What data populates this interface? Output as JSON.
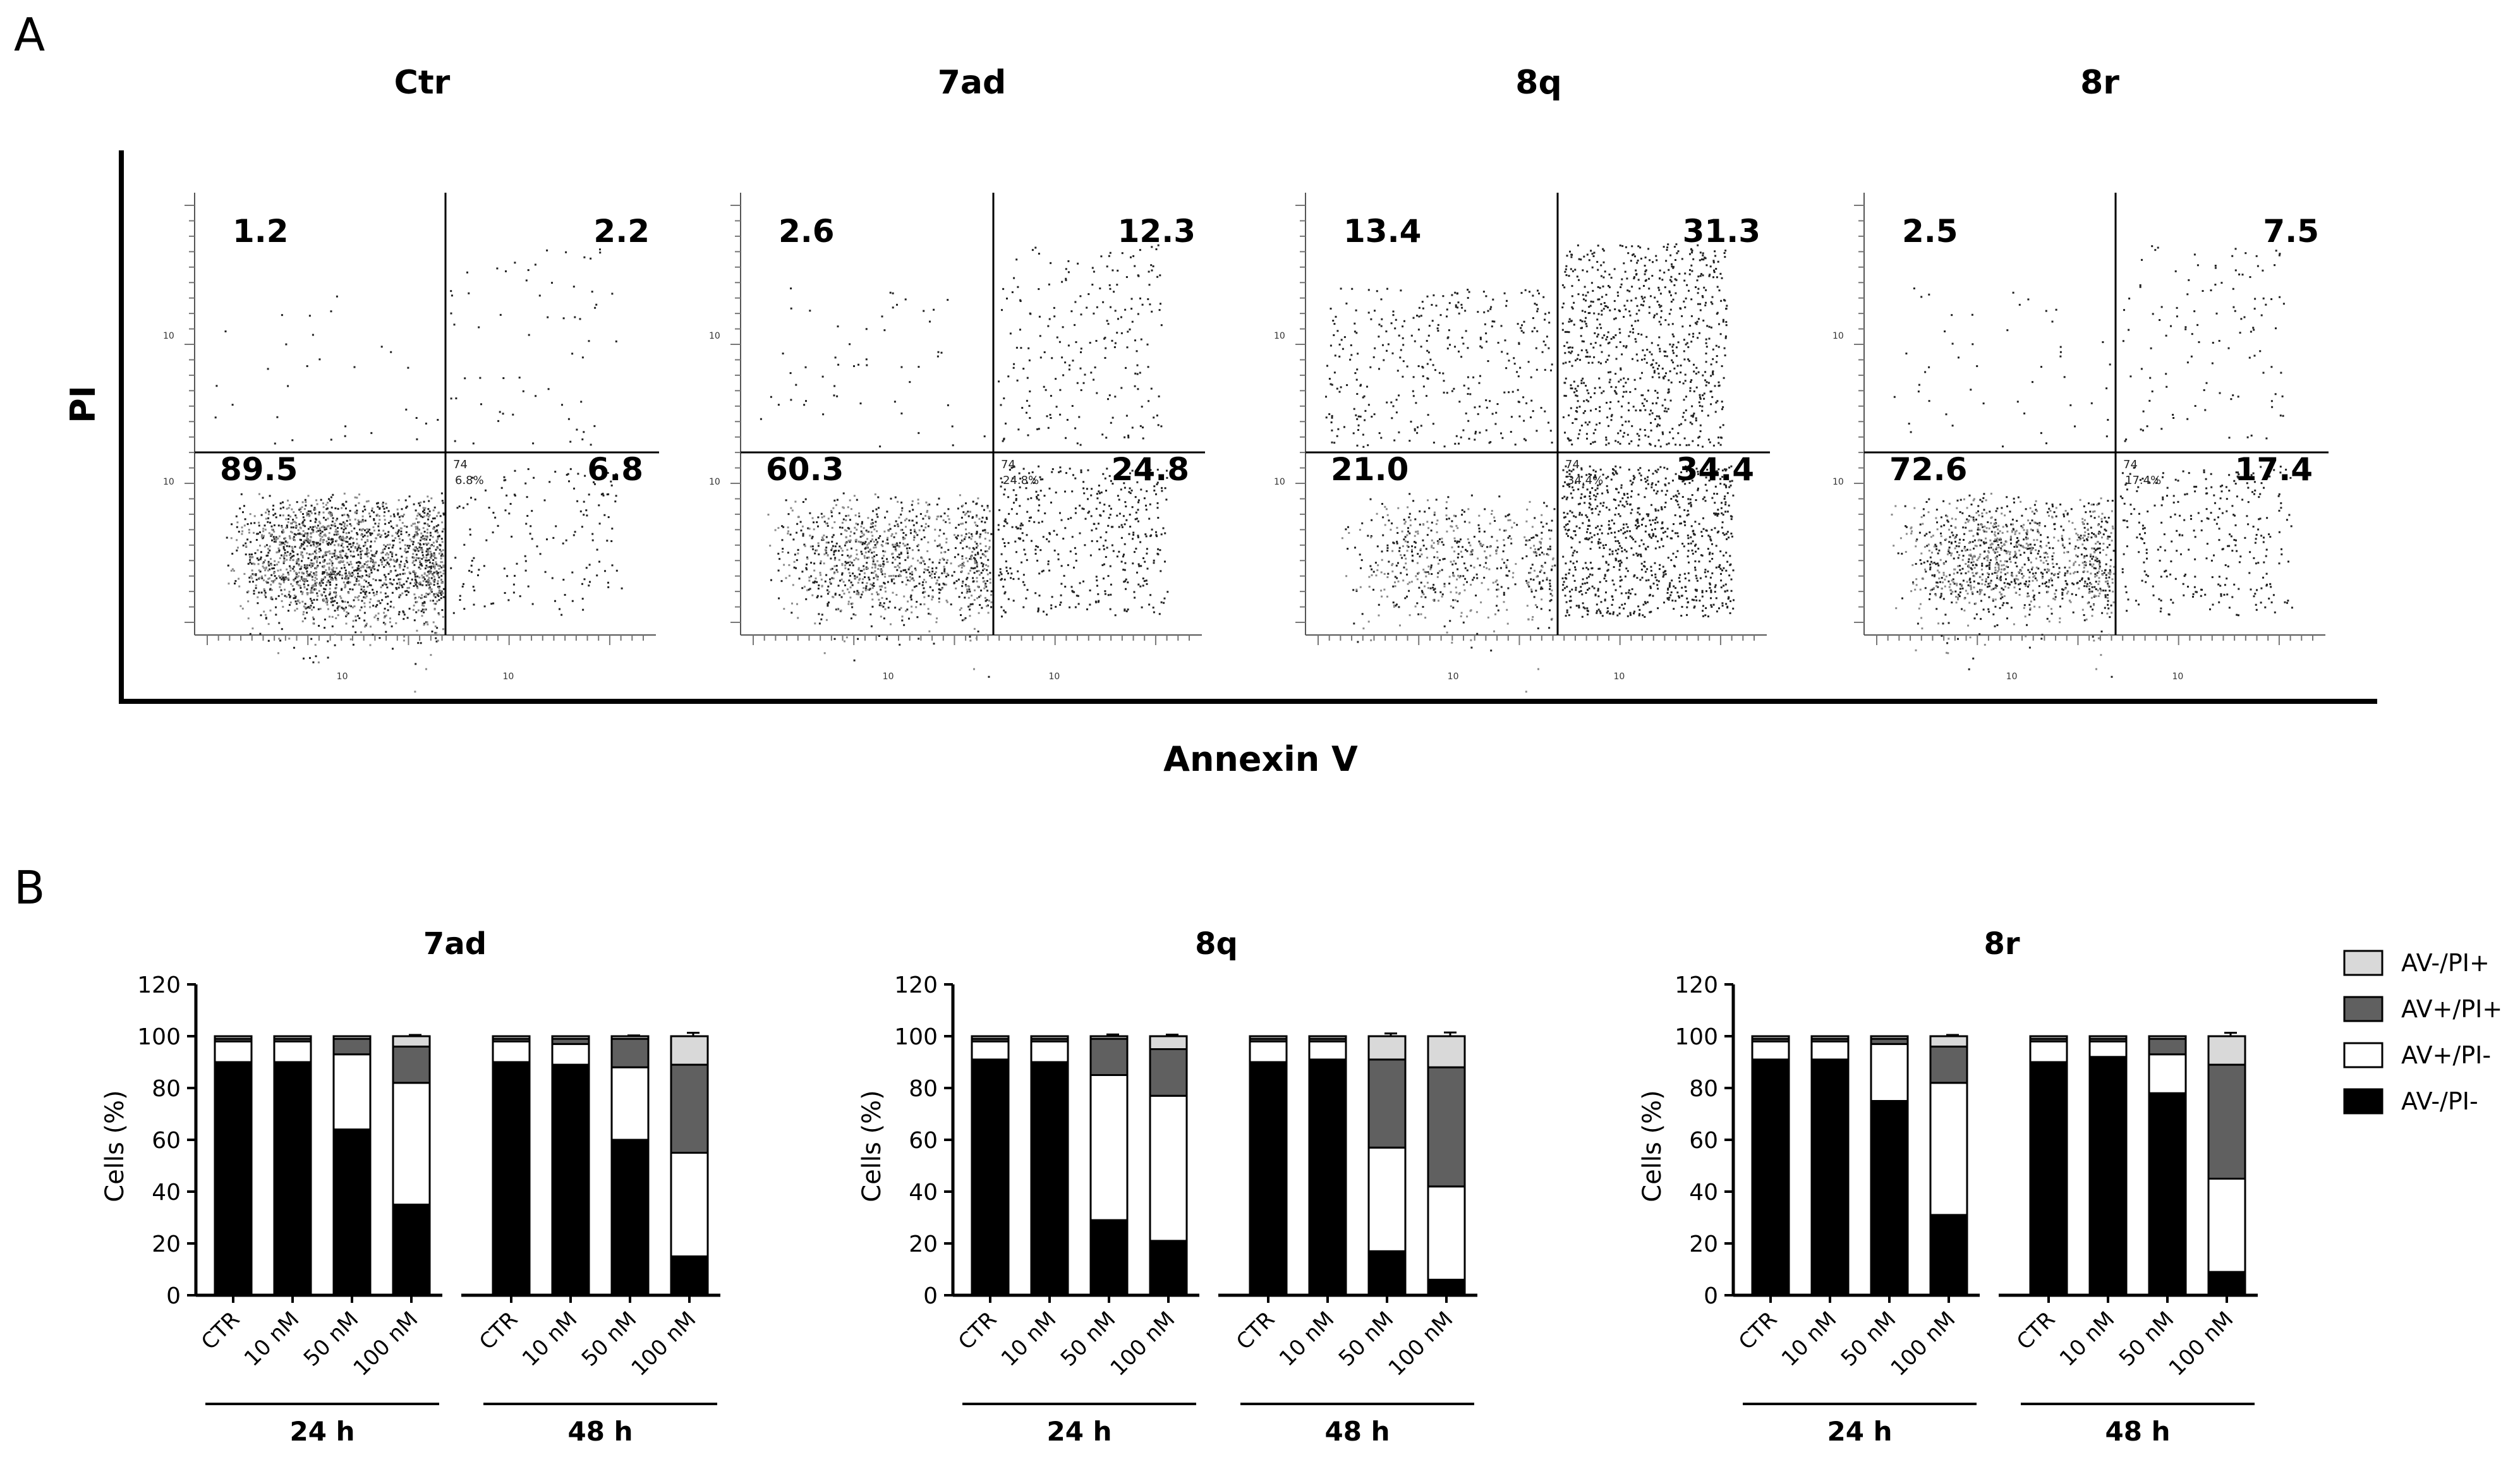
{
  "panel_a": {
    "label": "A",
    "xlabel": "Annexin V",
    "ylabel": "PI",
    "plots": [
      {
        "title": "Ctr",
        "quadrants": {
          "ul": "1.2",
          "ur": "2.2",
          "ll": "89.5",
          "lr": "6.8"
        },
        "inset_lr": "6.8%",
        "inset_ur": "74"
      },
      {
        "title": "7ad",
        "quadrants": {
          "ul": "2.6",
          "ur": "12.3",
          "ll": "60.3",
          "lr": "24.8"
        },
        "inset_lr": "24.8%",
        "inset_ur": "74"
      },
      {
        "title": "8q",
        "quadrants": {
          "ul": "13.4",
          "ur": "31.3",
          "ll": "21.0",
          "lr": "34.4"
        },
        "inset_lr": "34.4%",
        "inset_ur": "74"
      },
      {
        "title": "8r",
        "quadrants": {
          "ul": "2.5",
          "ur": "7.5",
          "ll": "72.6",
          "lr": "17.4"
        },
        "inset_lr": "17.4%",
        "inset_ur": "74"
      }
    ],
    "tick_label": "10"
  },
  "panel_b": {
    "label": "B",
    "legend": [
      {
        "name": "AV-/PI+",
        "color": "#d9d9d9"
      },
      {
        "name": "AV+/PI+",
        "color": "#606060"
      },
      {
        "name": "AV+/PI-",
        "color": "#ffffff"
      },
      {
        "name": "AV-/PI-",
        "color": "#000000"
      }
    ]
  },
  "chart_data": [
    {
      "type": "bar",
      "stacked": true,
      "title": "7ad",
      "ylabel": "Cells (%)",
      "ylim": [
        0,
        120
      ],
      "yticks": [
        "0",
        "20",
        "40",
        "60",
        "80",
        "100",
        "120"
      ],
      "categories": [
        "CTR",
        "10 nM",
        "50 nM",
        "100 nM",
        "CTR",
        "10 nM",
        "50 nM",
        "100 nM"
      ],
      "groups": [
        "24 h",
        "48 h"
      ],
      "series": [
        {
          "name": "AV-/PI-",
          "values": [
            90,
            90,
            64,
            35,
            90,
            89,
            60,
            15
          ]
        },
        {
          "name": "AV+/PI-",
          "values": [
            8,
            8,
            29,
            47,
            8,
            8,
            28,
            40
          ]
        },
        {
          "name": "AV+/PI+",
          "values": [
            1,
            1,
            6,
            14,
            1,
            2,
            11,
            34
          ]
        },
        {
          "name": "AV-/PI+",
          "values": [
            1,
            1,
            1,
            4,
            1,
            1,
            1,
            11
          ]
        }
      ]
    },
    {
      "type": "bar",
      "stacked": true,
      "title": "8q",
      "ylabel": "Cells (%)",
      "ylim": [
        0,
        120
      ],
      "yticks": [
        "0",
        "20",
        "40",
        "60",
        "80",
        "100",
        "120"
      ],
      "categories": [
        "CTR",
        "10 nM",
        "50 nM",
        "100 nM",
        "CTR",
        "10 nM",
        "50 nM",
        "100 nM"
      ],
      "groups": [
        "24 h",
        "48 h"
      ],
      "series": [
        {
          "name": "AV-/PI-",
          "values": [
            91,
            90,
            29,
            21,
            90,
            91,
            17,
            6
          ]
        },
        {
          "name": "AV+/PI-",
          "values": [
            7,
            8,
            56,
            56,
            8,
            7,
            40,
            36
          ]
        },
        {
          "name": "AV+/PI+",
          "values": [
            1,
            1,
            14,
            18,
            1,
            1,
            34,
            46
          ]
        },
        {
          "name": "AV-/PI+",
          "values": [
            1,
            1,
            1,
            5,
            1,
            1,
            9,
            12
          ]
        }
      ]
    },
    {
      "type": "bar",
      "stacked": true,
      "title": "8r",
      "ylabel": "Cells (%)",
      "ylim": [
        0,
        120
      ],
      "yticks": [
        "0",
        "20",
        "40",
        "60",
        "80",
        "100",
        "120"
      ],
      "categories": [
        "CTR",
        "10 nM",
        "50 nM",
        "100 nM",
        "CTR",
        "10 nM",
        "50 nM",
        "100 nM"
      ],
      "groups": [
        "24 h",
        "48 h"
      ],
      "series": [
        {
          "name": "AV-/PI-",
          "values": [
            91,
            91,
            75,
            31,
            90,
            92,
            78,
            9
          ]
        },
        {
          "name": "AV+/PI-",
          "values": [
            7,
            7,
            22,
            51,
            8,
            6,
            15,
            36
          ]
        },
        {
          "name": "AV+/PI+",
          "values": [
            1,
            1,
            2,
            14,
            1,
            1,
            6,
            44
          ]
        },
        {
          "name": "AV-/PI+",
          "values": [
            1,
            1,
            1,
            4,
            1,
            1,
            1,
            11
          ]
        }
      ]
    }
  ]
}
